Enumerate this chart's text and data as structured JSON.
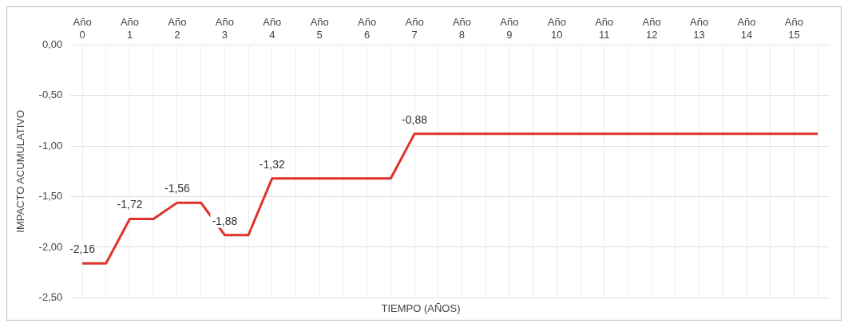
{
  "chart_data": {
    "type": "line",
    "xlabel": "TIEMPO (AÑOS)",
    "ylabel": "IMPACTO ACUMULATIVO",
    "categories": [
      "Año 0",
      null,
      "Año 1",
      null,
      "Año 2",
      null,
      "Año 3",
      null,
      "Año 4",
      null,
      "Año 5",
      null,
      "Año 6",
      null,
      "Año 7",
      null,
      "Año 8",
      null,
      "Año 9",
      null,
      "Año 10",
      null,
      "Año 11",
      null,
      "Año 12",
      null,
      "Año 13",
      null,
      "Año 14",
      null,
      "Año 15",
      null
    ],
    "series": [
      {
        "color": "#e0322c",
        "values": [
          -2.16,
          -2.16,
          -1.72,
          -1.72,
          -1.56,
          -1.56,
          -1.88,
          -1.88,
          -1.32,
          -1.32,
          -1.32,
          -1.32,
          -1.32,
          -1.32,
          -0.88,
          -0.88,
          -0.88,
          -0.88,
          -0.88,
          -0.88,
          -0.88,
          -0.88,
          -0.88,
          -0.88,
          -0.88,
          -0.88,
          -0.88,
          -0.88,
          -0.88,
          -0.88,
          -0.88,
          -0.88
        ],
        "value_labels": [
          "-2,16",
          null,
          "-1,72",
          null,
          "-1,56",
          null,
          "-1,88",
          null,
          "-1,32",
          null,
          null,
          null,
          null,
          null,
          "-0,88",
          null,
          null,
          null,
          null,
          null,
          null,
          null,
          null,
          null,
          null,
          null,
          null,
          null,
          null,
          null,
          null,
          null
        ]
      }
    ],
    "ylim": [
      -2.5,
      0
    ],
    "yticks": [
      {
        "value": 0,
        "label": "0,00"
      },
      {
        "value": -0.5,
        "label": "-0,50"
      },
      {
        "value": -1,
        "label": "-1,00"
      },
      {
        "value": -1.5,
        "label": "-1,50"
      },
      {
        "value": -2,
        "label": "-2,00"
      },
      {
        "value": -2.5,
        "label": "-2,50"
      }
    ],
    "grid": true,
    "legend": false,
    "marker": "none",
    "line_style": "solid"
  }
}
